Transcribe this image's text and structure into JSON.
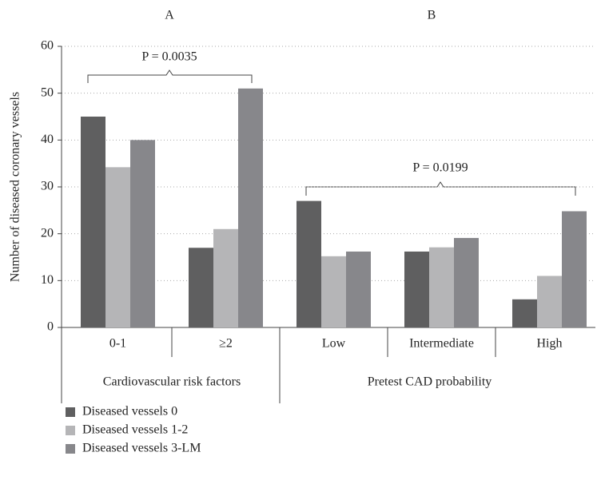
{
  "chart_data": {
    "type": "bar",
    "panels": [
      "A",
      "B"
    ],
    "ylabel": "Number of diseased coronary vessels",
    "categories": [
      "0-1",
      "≥2",
      "Low",
      "Intermediate",
      "High"
    ],
    "group_labels": [
      "Cardiovascular risk factors",
      "Pretest CAD probability"
    ],
    "series": [
      {
        "name": "Diseased vessels 0",
        "color": "#5f5f60",
        "values": [
          45,
          17,
          27,
          16.2,
          6
        ]
      },
      {
        "name": "Diseased vessels 1-2",
        "color": "#b5b5b7",
        "values": [
          34.2,
          21,
          15.2,
          17.1,
          11
        ]
      },
      {
        "name": "Diseased vessels 3-LM",
        "color": "#87878b",
        "values": [
          40,
          51,
          16.2,
          19.1,
          24.8
        ]
      }
    ],
    "annotations": [
      "P = 0.0035",
      "P = 0.0199"
    ],
    "ylim": [
      0,
      60
    ],
    "yticks": [
      0,
      10,
      20,
      30,
      40,
      50,
      60
    ],
    "grid": true
  }
}
